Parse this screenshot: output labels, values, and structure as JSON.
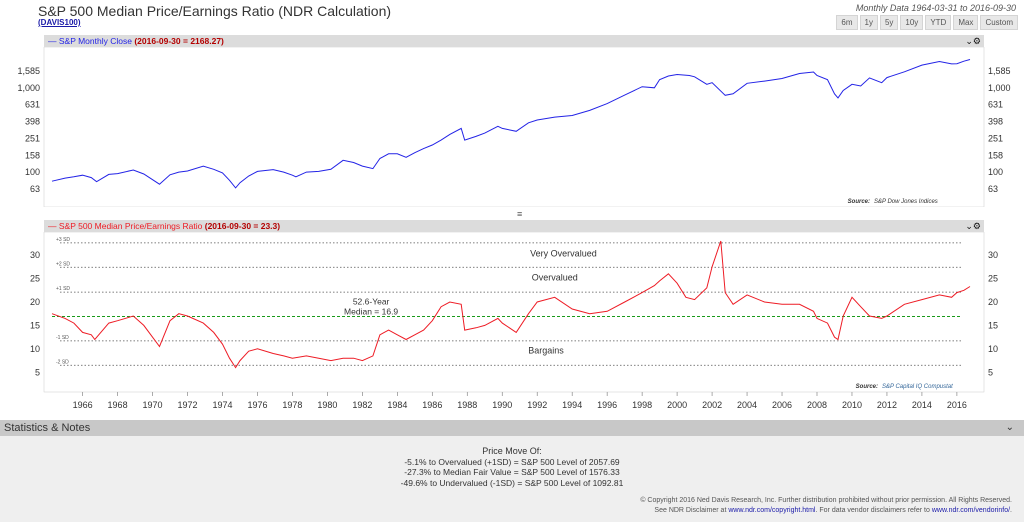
{
  "header": {
    "title": "S&P 500 Median Price/Earnings Ratio (NDR Calculation)",
    "code": "(DAVIS100)",
    "data_range": "Monthly Data 1964-03-31 to 2016-09-30",
    "range_buttons": [
      "6m",
      "1y",
      "5y",
      "10y",
      "YTD",
      "Max",
      "Custom"
    ]
  },
  "top_panel": {
    "legend_prefix": "S&P Monthly Close",
    "legend_value": "(2016-09-30 = 2168.27)",
    "source_label": "Source:",
    "source_value": "S&P Dow Jones Indices"
  },
  "bottom_panel": {
    "legend_prefix": "S&P 500 Median Price/Earnings Ratio",
    "legend_value": "(2016-09-30 = 23.3)",
    "source_label": "Source:",
    "source_value": "S&P Capital IQ Compustat"
  },
  "statistics": {
    "header": "Statistics & Notes",
    "lines": [
      "Price Move Of:",
      "-5.1% to Overvalued (+1SD) = S&P 500 Level of 2057.69",
      "-27.3% to Median Fair Value = S&P 500 Level of 1576.33",
      "-49.6% to Undervalued (-1SD) = S&P 500 Level of 1092.81"
    ],
    "footer_1": "© Copyright 2016 Ned Davis Research, Inc. Further distribution prohibited without prior permission. All Rights Reserved.",
    "footer_2a": "See NDR Disclaimer at",
    "footer_2b": "www.ndr.com/copyright.html",
    "footer_2c": ". For data vendor disclaimers refer to",
    "footer_2d": "www.ndr.com/vendorinfo/",
    "footer_2e": "."
  },
  "chart_data": [
    {
      "type": "line",
      "title": "S&P Monthly Close",
      "scale": "log",
      "color": "#2323e6",
      "yticks": [
        63,
        100,
        158,
        251,
        398,
        631,
        1000,
        1585
      ],
      "ytick_labels": [
        "63",
        "100",
        "158",
        "251",
        "398",
        "631",
        "1,000",
        "1,585"
      ],
      "xlim": [
        1964.25,
        2016.75
      ],
      "series": [
        {
          "x": [
            1964.25,
            1965.0,
            1965.5,
            1966.0,
            1966.5,
            1966.8,
            1967.5,
            1968.0,
            1968.9,
            1969.5,
            1970.4,
            1971.0,
            1971.5,
            1972.0,
            1972.9,
            1973.5,
            1974.0,
            1974.4,
            1974.75,
            1975.0,
            1975.5,
            1976.0,
            1976.9,
            1977.5,
            1978.0,
            1978.2,
            1978.8,
            1979.5,
            1980.2,
            1980.9,
            1981.5,
            1982.0,
            1982.6,
            1983.0,
            1983.5,
            1984.0,
            1984.5,
            1985.0,
            1985.5,
            1986.0,
            1986.5,
            1987.0,
            1987.65,
            1987.85,
            1988.5,
            1989.0,
            1989.75,
            1990.0,
            1990.8,
            1991.5,
            1992.0,
            1993.0,
            1994.0,
            1995.0,
            1996.0,
            1997.0,
            1998.0,
            1998.7,
            1999.0,
            1999.5,
            2000.0,
            2000.7,
            2001.0,
            2001.7,
            2002.0,
            2002.75,
            2003.2,
            2004.0,
            2005.0,
            2006.0,
            2007.0,
            2007.8,
            2008.0,
            2008.6,
            2009.0,
            2009.2,
            2009.5,
            2010.0,
            2010.5,
            2011.0,
            2011.7,
            2012.0,
            2013.0,
            2014.0,
            2015.0,
            2015.7,
            2016.0,
            2016.4,
            2016.75
          ],
          "y": [
            78,
            85,
            88,
            92,
            86,
            77,
            94,
            96,
            106,
            95,
            72,
            93,
            100,
            103,
            118,
            108,
            98,
            80,
            65,
            75,
            90,
            102,
            107,
            100,
            92,
            88,
            100,
            102,
            108,
            138,
            130,
            118,
            110,
            145,
            165,
            165,
            150,
            170,
            190,
            210,
            240,
            280,
            330,
            240,
            265,
            290,
            350,
            330,
            305,
            385,
            415,
            450,
            470,
            540,
            650,
            820,
            1030,
            1000,
            1250,
            1380,
            1440,
            1400,
            1350,
            1100,
            1150,
            815,
            850,
            1130,
            1200,
            1290,
            1480,
            1540,
            1400,
            1250,
            850,
            760,
            930,
            1100,
            1050,
            1310,
            1150,
            1320,
            1550,
            1860,
            2050,
            1920,
            1930,
            2070,
            2168
          ]
        }
      ]
    },
    {
      "type": "line",
      "title": "S&P 500 Median Price/Earnings Ratio",
      "color": "#ee1c25",
      "ylim": [
        2.5,
        34.5
      ],
      "yticks": [
        5,
        10,
        15,
        20,
        25,
        30
      ],
      "xticks": [
        1966,
        1968,
        1970,
        1972,
        1974,
        1976,
        1978,
        1980,
        1982,
        1984,
        1986,
        1988,
        1990,
        1992,
        1994,
        1996,
        1998,
        2000,
        2002,
        2004,
        2006,
        2008,
        2010,
        2012,
        2014,
        2016
      ],
      "xlim": [
        1964.25,
        2016.75
      ],
      "bands": [
        {
          "label": "+3 SD",
          "value": 32.6
        },
        {
          "label": "+2 SD",
          "value": 27.4
        },
        {
          "label": "+1 SD",
          "value": 22.1
        },
        {
          "label": "-1 SD",
          "value": 11.7
        },
        {
          "label": "-2 SD",
          "value": 6.5
        }
      ],
      "median": {
        "value": 16.9,
        "label_1": "52.6-Year",
        "label_2": "Median = 16.9"
      },
      "annotations": [
        {
          "text": "Very Overvalued",
          "x": 1993.5,
          "y": 29.7
        },
        {
          "text": "Overvalued",
          "x": 1993.0,
          "y": 24.6
        },
        {
          "text": "Bargains",
          "x": 1992.5,
          "y": 9.0
        }
      ],
      "series": [
        {
          "x": [
            1964.25,
            1965.0,
            1965.5,
            1966.0,
            1966.5,
            1966.7,
            1967.5,
            1968.0,
            1968.9,
            1969.5,
            1970.4,
            1971.0,
            1971.5,
            1972.0,
            1972.9,
            1973.5,
            1974.0,
            1974.4,
            1974.75,
            1975.0,
            1975.5,
            1976.0,
            1976.9,
            1977.5,
            1978.0,
            1978.8,
            1979.5,
            1980.2,
            1980.9,
            1981.5,
            1982.0,
            1982.6,
            1983.0,
            1983.5,
            1984.0,
            1984.5,
            1985.0,
            1985.5,
            1986.0,
            1986.5,
            1987.0,
            1987.65,
            1987.85,
            1988.5,
            1989.0,
            1989.75,
            1990.0,
            1990.8,
            1991.5,
            1992.0,
            1993.0,
            1994.0,
            1995.0,
            1996.0,
            1997.0,
            1998.0,
            1998.7,
            1999.0,
            1999.5,
            2000.0,
            2000.5,
            2001.0,
            2001.7,
            2002.0,
            2002.5,
            2002.75,
            2003.2,
            2004.0,
            2005.0,
            2006.0,
            2007.0,
            2007.8,
            2008.0,
            2008.6,
            2009.0,
            2009.2,
            2009.5,
            2010.0,
            2010.5,
            2011.0,
            2011.7,
            2012.0,
            2013.0,
            2014.0,
            2015.0,
            2015.7,
            2016.0,
            2016.4,
            2016.75
          ],
          "y": [
            17.5,
            16.5,
            15.5,
            13.5,
            13.0,
            12.0,
            15.5,
            16.0,
            17.0,
            15.0,
            10.5,
            16.0,
            17.5,
            17.0,
            15.5,
            13.5,
            11.0,
            8.0,
            6.0,
            7.5,
            9.5,
            10.0,
            9.0,
            8.5,
            8.0,
            8.5,
            8.0,
            7.5,
            8.0,
            8.0,
            7.5,
            8.5,
            13.0,
            14.0,
            13.0,
            12.0,
            13.0,
            14.0,
            16.0,
            19.0,
            20.0,
            19.5,
            14.0,
            14.5,
            15.0,
            16.5,
            15.5,
            13.5,
            17.5,
            20.0,
            21.0,
            18.5,
            17.5,
            18.0,
            20.0,
            22.0,
            23.5,
            24.5,
            26.0,
            24.0,
            21.0,
            20.5,
            23.0,
            27.5,
            33.0,
            22.0,
            19.5,
            21.5,
            20.0,
            19.5,
            19.5,
            18.0,
            16.5,
            15.5,
            12.5,
            12.0,
            17.0,
            21.0,
            19.0,
            17.0,
            16.5,
            17.0,
            19.5,
            20.5,
            21.5,
            21.0,
            22.0,
            22.5,
            23.3
          ]
        }
      ]
    }
  ]
}
